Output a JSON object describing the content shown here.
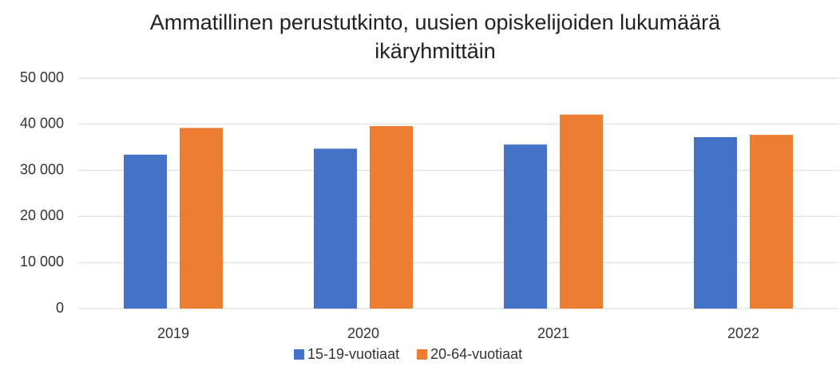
{
  "chart_data": {
    "type": "bar",
    "title": "Ammatillinen perustutkinto, uusien opiskelijoiden lukumäärä ikäryhmittäin",
    "categories": [
      "2019",
      "2020",
      "2021",
      "2022"
    ],
    "series": [
      {
        "name": "15-19-vuotiaat",
        "color": "#4472c4",
        "values": [
          33400,
          34700,
          35600,
          37200
        ]
      },
      {
        "name": "20-64-vuotiaat",
        "color": "#ed7d31",
        "values": [
          39200,
          39600,
          42100,
          37700
        ]
      }
    ],
    "ylim": [
      0,
      50000
    ],
    "yticks": [
      0,
      {
        "value": 10000,
        "label": "10 000"
      },
      {
        "value": 20000,
        "label": "20 000"
      },
      {
        "value": 30000,
        "label": "30 000"
      },
      {
        "value": 40000,
        "label": "40 000"
      },
      {
        "value": 50000,
        "label": "50 000"
      }
    ],
    "grid": true,
    "legend": "bottom"
  }
}
